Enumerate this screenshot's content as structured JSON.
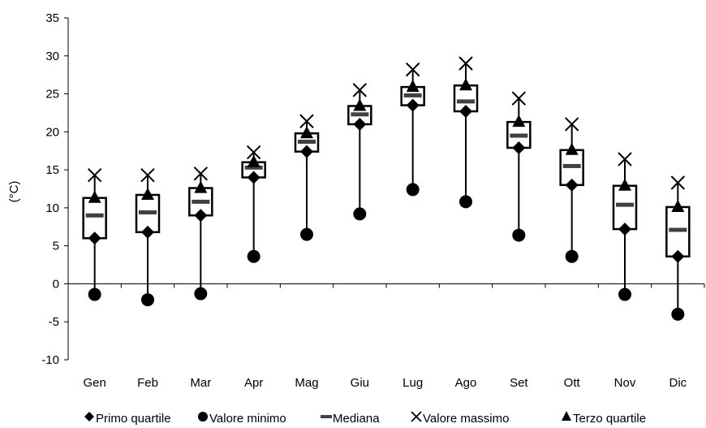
{
  "chart_data": {
    "type": "box",
    "ylabel": "(°C)",
    "ylim": [
      -10,
      35
    ],
    "yticks": [
      -10,
      -5,
      0,
      5,
      10,
      15,
      20,
      25,
      30,
      35
    ],
    "grid": false,
    "legend_position": "bottom",
    "categories": [
      "Gen",
      "Feb",
      "Mar",
      "Apr",
      "Mag",
      "Giu",
      "Lug",
      "Ago",
      "Set",
      "Ott",
      "Nov",
      "Dic"
    ],
    "series": [
      {
        "name": "Primo quartile",
        "marker": "diamond",
        "values": [
          6.0,
          6.8,
          9.0,
          14.0,
          17.4,
          21.0,
          23.5,
          22.7,
          17.9,
          13.0,
          7.2,
          3.6
        ]
      },
      {
        "name": "Valore minimo",
        "marker": "circle",
        "values": [
          -1.4,
          -2.1,
          -1.3,
          3.6,
          6.5,
          9.2,
          12.4,
          10.8,
          6.4,
          3.6,
          -1.4,
          -4.0
        ]
      },
      {
        "name": "Mediana",
        "marker": "dash",
        "values": [
          9.0,
          9.4,
          10.8,
          15.3,
          18.7,
          22.3,
          24.8,
          24.0,
          19.5,
          15.5,
          10.4,
          7.1
        ]
      },
      {
        "name": "Valore massimo",
        "marker": "cross",
        "values": [
          14.3,
          14.3,
          14.5,
          17.3,
          21.4,
          25.5,
          28.2,
          29.0,
          24.4,
          21.0,
          16.4,
          13.3
        ]
      },
      {
        "name": "Terzo quartile",
        "marker": "triangle",
        "values": [
          11.3,
          11.7,
          12.6,
          16.0,
          19.8,
          23.4,
          25.9,
          26.1,
          21.3,
          17.6,
          12.9,
          10.1
        ]
      }
    ]
  }
}
